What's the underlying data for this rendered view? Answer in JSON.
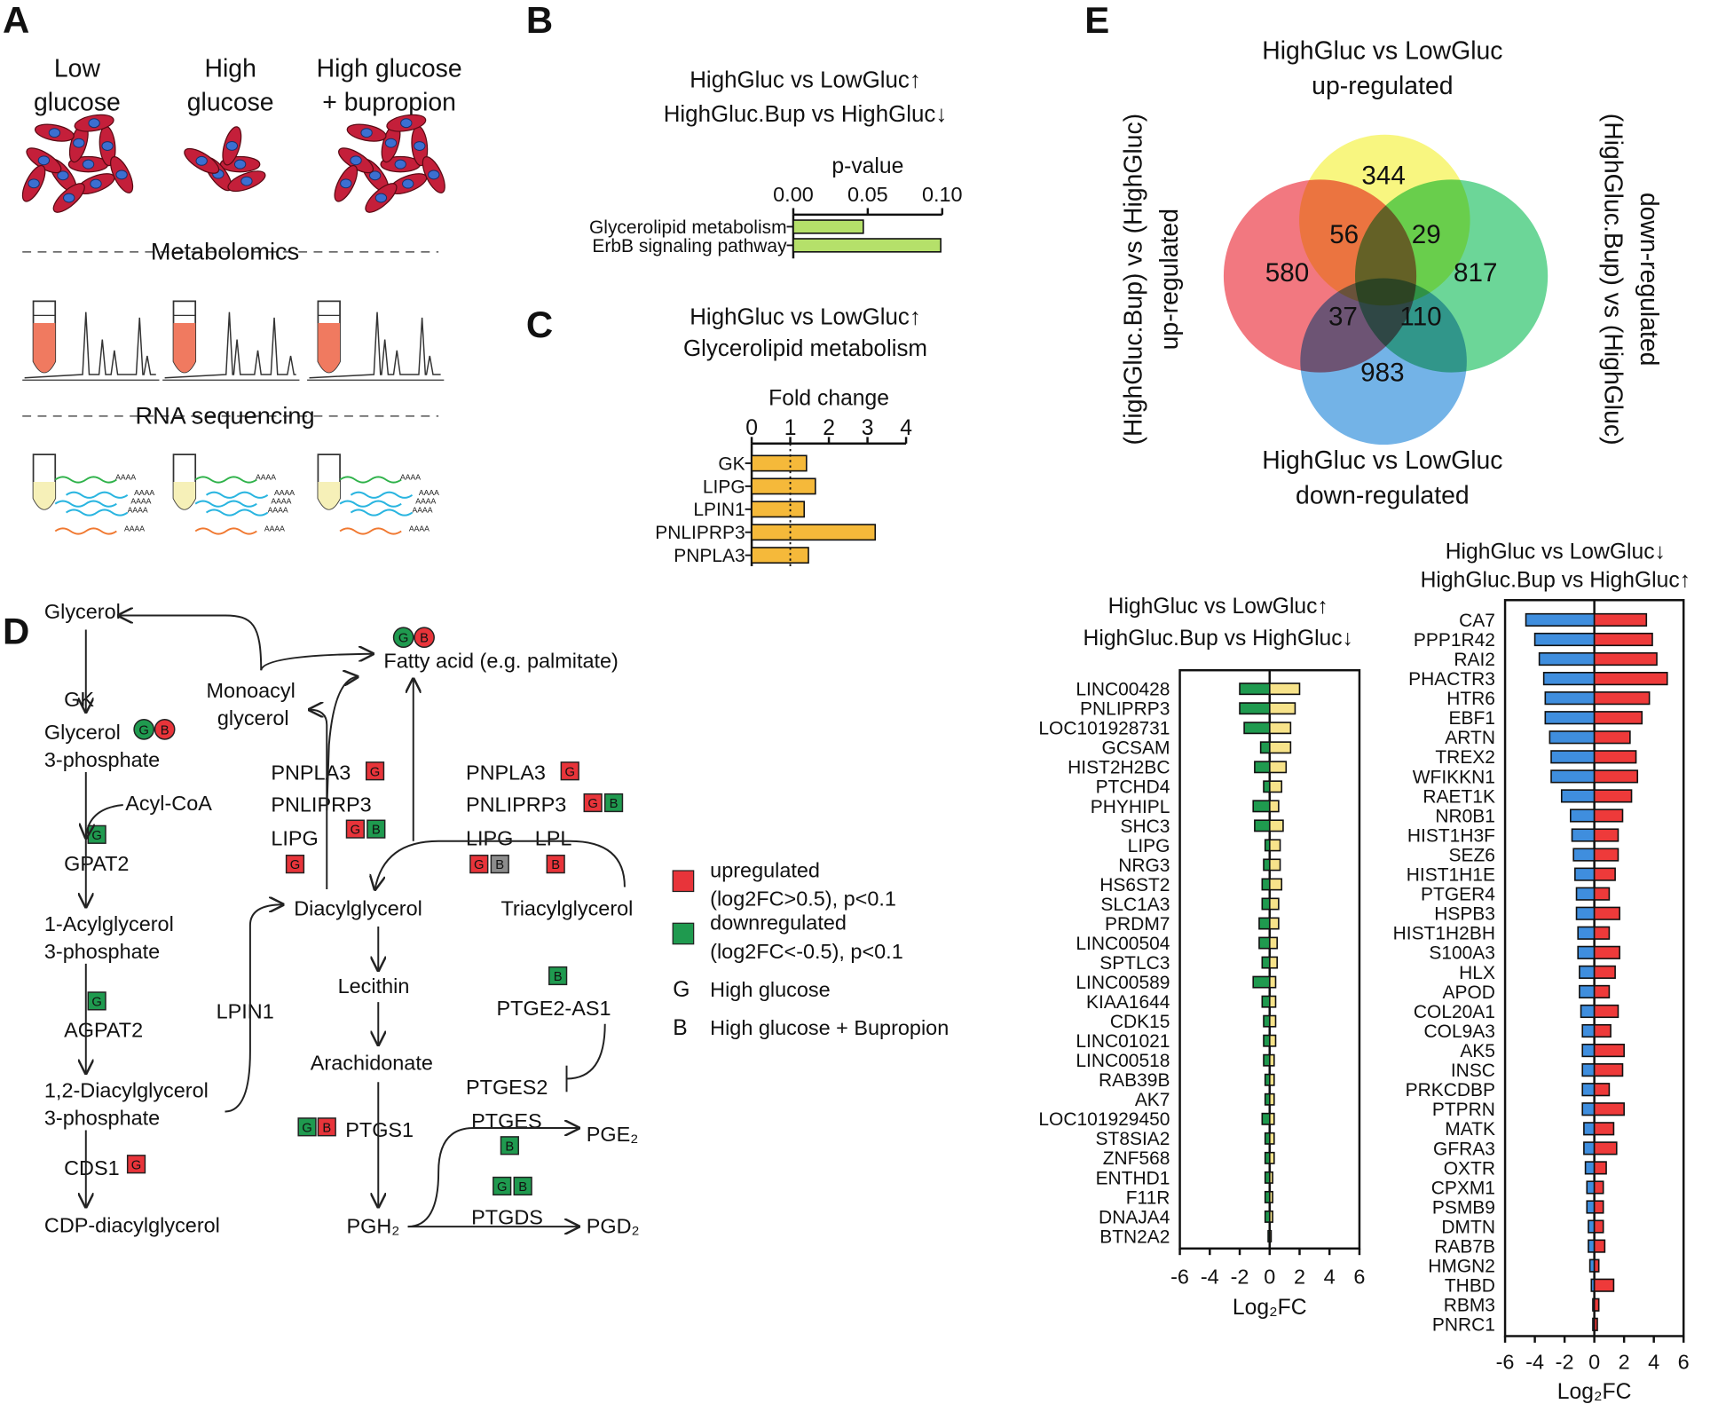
{
  "panel_labels": [
    "A",
    "B",
    "C",
    "D",
    "E"
  ],
  "panel_a": {
    "conditions": [
      [
        "Low",
        "glucose"
      ],
      [
        "High",
        "glucose"
      ],
      [
        "High glucose",
        "+ bupropion"
      ]
    ],
    "methods": [
      "Metabolomics",
      "RNA sequencing"
    ],
    "poly_a": "AAAA"
  },
  "pathway": {
    "texts": [
      "Glycerol",
      "GK",
      "Glycerol",
      "3-phosphate",
      "Acyl-CoA",
      "GPAT2",
      "1-Acylglycerol",
      "3-phosphate",
      "AGPAT2",
      "1,2-Diacylglycerol",
      "3-phosphate",
      "CDS1",
      "CDP-diacylglycerol",
      "Monoacyl",
      "glycerol",
      "Fatty acid (e.g. palmitate)",
      "PNPLA3",
      "PNLIPRP3",
      "LIPG",
      "PNPLA3",
      "PNLIPRP3",
      "LIPG",
      "LPL",
      "Diacylglycerol",
      "Triacylglycerol",
      "LPIN1",
      "Lecithin",
      "PTGE2-AS1",
      "Arachidonate",
      "PTGES2",
      "PTGS1",
      "PTGES",
      "PGE₂",
      "PTGDS",
      "PGD₂",
      "PGH₂"
    ],
    "badges": [
      {
        "letter": "G",
        "color": "#1f9a4f",
        "shape": "circle"
      },
      {
        "letter": "B",
        "color": "#e8343a",
        "shape": "circle"
      },
      {
        "letter": "G",
        "color": "#1f9a4f",
        "shape": "square"
      },
      {
        "letter": "G",
        "color": "#1f9a4f",
        "shape": "square"
      },
      {
        "letter": "G",
        "color": "#e8343a",
        "shape": "square"
      },
      {
        "letter": "G",
        "color": "#1f9a4f",
        "shape": "circle"
      },
      {
        "letter": "B",
        "color": "#e8343a",
        "shape": "circle"
      },
      {
        "letter": "G",
        "color": "#e8343a",
        "shape": "square"
      },
      {
        "letter": "G",
        "color": "#e8343a",
        "shape": "square"
      },
      {
        "letter": "B",
        "color": "#1f9a4f",
        "shape": "square"
      },
      {
        "letter": "G",
        "color": "#e8343a",
        "shape": "square"
      },
      {
        "letter": "G",
        "color": "#e8343a",
        "shape": "square"
      },
      {
        "letter": "G",
        "color": "#e8343a",
        "shape": "square"
      },
      {
        "letter": "B",
        "color": "#1f9a4f",
        "shape": "square"
      },
      {
        "letter": "G",
        "color": "#e8343a",
        "shape": "square"
      },
      {
        "letter": "B",
        "color": "#8c8c8c",
        "shape": "square"
      },
      {
        "letter": "B",
        "color": "#e8343a",
        "shape": "square"
      },
      {
        "letter": "B",
        "color": "#1f9a4f",
        "shape": "square"
      },
      {
        "letter": "G",
        "color": "#1f9a4f",
        "shape": "square"
      },
      {
        "letter": "B",
        "color": "#e8343a",
        "shape": "square"
      },
      {
        "letter": "B",
        "color": "#1f9a4f",
        "shape": "square"
      },
      {
        "letter": "G",
        "color": "#1f9a4f",
        "shape": "square"
      },
      {
        "letter": "B",
        "color": "#1f9a4f",
        "shape": "square"
      }
    ],
    "legend": {
      "items": [
        {
          "color": "#e8343a",
          "lines": [
            "upregulated",
            "(log2FC>0.5), p<0.1"
          ]
        },
        {
          "color": "#1f9a4f",
          "lines": [
            "downregulated",
            "(log2FC<-0.5), p<0.1"
          ]
        }
      ],
      "keys": [
        {
          "letter": "G",
          "text": "High glucose"
        },
        {
          "letter": "B",
          "text": "High glucose + Bupropion"
        }
      ]
    }
  },
  "chart_data": [
    {
      "type": "bar",
      "orientation": "horizontal",
      "titles": [
        {
          "text": "HighGluc vs LowGluc↑",
          "color": "#f6b73c"
        },
        {
          "text": "HighGluc.Bup vs HighGluc↓",
          "color": "#1a8a45"
        }
      ],
      "xlabel": "p-value",
      "categories": [
        "Glycerolipid metabolism",
        "ErbB signaling pathway"
      ],
      "series": [
        {
          "color": "#b5e06a",
          "values": [
            0.047,
            0.099
          ]
        }
      ],
      "xlim": [
        0,
        0.1
      ],
      "xticks": [
        {
          "value": 0,
          "label": "0.00"
        },
        0.05,
        {
          "value": 0.1,
          "label": "0.10"
        }
      ]
    },
    {
      "type": "bar",
      "orientation": "horizontal",
      "titles": [
        {
          "text": "HighGluc vs LowGluc↑",
          "color": "#f6b73c"
        },
        {
          "text": "Glycerolipid metabolism",
          "color": "#111111"
        }
      ],
      "xlabel": "Fold change",
      "categories": [
        "GK",
        "LIPG",
        "LPIN1",
        "PNLIPRP3",
        "PNPLA3"
      ],
      "series": [
        {
          "color": "#f5b93a",
          "values": [
            1.42,
            1.65,
            1.36,
            3.2,
            1.47
          ]
        }
      ],
      "xlim": [
        0,
        4
      ],
      "xticks": [
        0,
        1,
        2,
        3,
        4
      ],
      "refline": 1
    },
    {
      "type": "venn",
      "sets": [
        {
          "label": [
            "HighGluc vs LowGluc",
            "up-regulated"
          ],
          "color": "#f7f56a",
          "label_color": "#f5a52a"
        },
        {
          "label": [
            "(HighGluc.Bup) vs (HighGluc)",
            "up-regulated"
          ],
          "color": "#f0606a",
          "label_color": "#e8343a"
        },
        {
          "label": [
            "(HighGluc.Bup) vs (HighGluc)",
            "down-regulated"
          ],
          "color": "#52cf86",
          "label_color": "#2fc06a"
        },
        {
          "label": [
            "HighGluc vs LowGluc",
            "down-regulated"
          ],
          "color": "#5aa6e3",
          "label_color": "#1f7fd6"
        }
      ],
      "values": [
        344,
        56,
        29,
        580,
        817,
        37,
        110,
        983
      ]
    },
    {
      "type": "bar",
      "orientation": "horizontal",
      "diverging": true,
      "xlabel": "Log₂FC",
      "categories": [
        "LINC00428",
        "PNLIPRP3",
        "LOC101928731",
        "GCSAM",
        "HIST2H2BC",
        "PTCHD4",
        "PHYHIPL",
        "SHC3",
        "LIPG",
        "NRG3",
        "HS6ST2",
        "SLC1A3",
        "PRDM7",
        "LINC00504",
        "SPTLC3",
        "LINC00589",
        "KIAA1644",
        "CDK15",
        "LINC01021",
        "LINC00518",
        "RAB39B",
        "AK7",
        "LOC101929450",
        "ST8SIA2",
        "ZNF568",
        "ENTHD1",
        "F11R",
        "DNAJA4",
        "BTN2A2"
      ],
      "series": [
        {
          "name": "HighGluc vs LowGluc↑",
          "color": "#f7e38a",
          "label_color": "#f6b73c",
          "values": [
            2.0,
            1.7,
            1.4,
            1.4,
            1.1,
            0.8,
            0.6,
            0.9,
            0.7,
            0.7,
            0.8,
            0.6,
            0.6,
            0.5,
            0.5,
            0.4,
            0.4,
            0.4,
            0.4,
            0.3,
            0.3,
            0.3,
            0.3,
            0.3,
            0.3,
            0.2,
            0.2,
            0.2,
            0.1
          ]
        },
        {
          "name": "HighGluc.Bup vs HighGluc↓",
          "color": "#1f9a4f",
          "label_color": "#1a8a45",
          "values": [
            -2.0,
            -2.0,
            -1.7,
            -0.6,
            -1.0,
            -0.4,
            -1.1,
            -1.0,
            -0.3,
            -0.4,
            -0.5,
            -0.5,
            -0.7,
            -0.7,
            -0.5,
            -1.1,
            -0.5,
            -0.4,
            -0.4,
            -0.4,
            -0.3,
            -0.3,
            -0.5,
            -0.3,
            -0.3,
            -0.3,
            -0.3,
            -0.3,
            -0.1
          ]
        }
      ],
      "xlim": [
        -6,
        6
      ],
      "xticks": [
        -6,
        -4,
        -2,
        0,
        2,
        4,
        6
      ]
    },
    {
      "type": "bar",
      "orientation": "horizontal",
      "diverging": true,
      "xlabel": "Log₂FC",
      "categories": [
        "CA7",
        "PPP1R42",
        "RAI2",
        "PHACTR3",
        "HTR6",
        "EBF1",
        "ARTN",
        "TREX2",
        "WFIKKN1",
        "RAET1K",
        "NR0B1",
        "HIST1H3F",
        "SEZ6",
        "HIST1H1E",
        "PTGER4",
        "HSPB3",
        "HIST1H2BH",
        "S100A3",
        "HLX",
        "APOD",
        "COL20A1",
        "COL9A3",
        "AK5",
        "INSC",
        "PRKCDBP",
        "PTPRN",
        "MATK",
        "GFRA3",
        "OXTR",
        "CPXM1",
        "PSMB9",
        "DMTN",
        "RAB7B",
        "HMGN2",
        "THBD",
        "RBM3",
        "PNRC1"
      ],
      "highlight_index": 14,
      "highlight_color": "#e8197f",
      "series": [
        {
          "name": "HighGluc vs LowGluc↓",
          "color": "#3f8ede",
          "label_color": "#1f7fd6",
          "values": [
            -4.6,
            -4.0,
            -3.7,
            -3.4,
            -3.3,
            -3.3,
            -3.0,
            -2.9,
            -2.9,
            -2.2,
            -1.6,
            -1.5,
            -1.4,
            -1.3,
            -1.2,
            -1.2,
            -1.1,
            -1.1,
            -1.0,
            -1.0,
            -0.9,
            -0.8,
            -0.8,
            -0.8,
            -0.8,
            -0.8,
            -0.7,
            -0.7,
            -0.6,
            -0.5,
            -0.5,
            -0.4,
            -0.4,
            -0.3,
            -0.2,
            -0.1,
            -0.1
          ]
        },
        {
          "name": "HighGluc.Bup vs HighGluc↑",
          "color": "#ee3a3a",
          "label_color": "#e8343a",
          "values": [
            3.5,
            3.9,
            4.2,
            4.9,
            3.7,
            3.2,
            2.4,
            2.8,
            2.9,
            2.5,
            1.9,
            1.6,
            1.6,
            1.4,
            1.0,
            1.7,
            1.0,
            1.7,
            1.4,
            1.0,
            1.6,
            1.1,
            2.0,
            1.9,
            1.0,
            2.0,
            1.3,
            1.5,
            0.8,
            0.6,
            0.6,
            0.6,
            0.7,
            0.3,
            1.3,
            0.3,
            0.2
          ]
        }
      ],
      "xlim": [
        -6,
        6
      ],
      "xticks": [
        -6,
        -4,
        -2,
        0,
        2,
        4,
        6
      ]
    }
  ]
}
